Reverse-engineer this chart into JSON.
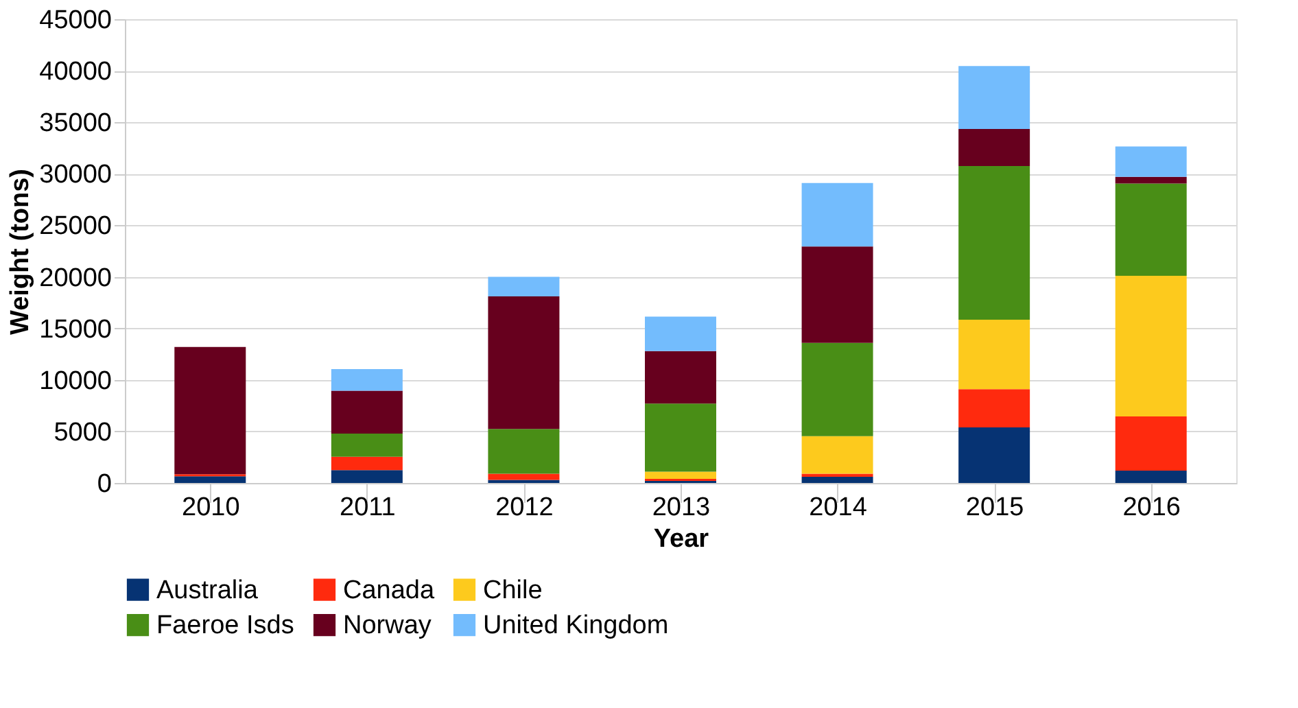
{
  "chart_data": {
    "type": "bar",
    "stacked": true,
    "xlabel": "Year",
    "ylabel": "Weight (tons)",
    "categories": [
      "2010",
      "2011",
      "2012",
      "2013",
      "2014",
      "2015",
      "2016"
    ],
    "series": [
      {
        "name": "Australia",
        "color": "#063373",
        "values": [
          650,
          1250,
          300,
          200,
          600,
          5400,
          1200
        ]
      },
      {
        "name": "Canada",
        "color": "#ff2a0e",
        "values": [
          200,
          1300,
          600,
          200,
          300,
          3700,
          5250
        ]
      },
      {
        "name": "Chile",
        "color": "#fdca1d",
        "values": [
          null,
          null,
          null,
          700,
          3650,
          6750,
          13650
        ]
      },
      {
        "name": "Faeroe Isds",
        "color": "#498e16",
        "values": [
          null,
          2250,
          4350,
          6600,
          9050,
          14900,
          8950
        ]
      },
      {
        "name": "Norway",
        "color": "#67001e",
        "values": [
          12350,
          4150,
          12850,
          5100,
          9350,
          3600,
          650
        ]
      },
      {
        "name": "United Kingdom",
        "color": "#73bcfd",
        "values": [
          null,
          2100,
          1900,
          3350,
          6150,
          6100,
          2950
        ]
      }
    ],
    "ylim": [
      0,
      45000
    ],
    "yticks": [
      0,
      5000,
      10000,
      15000,
      20000,
      25000,
      30000,
      35000,
      40000,
      45000
    ],
    "grid": "y",
    "legend": "bottom"
  }
}
